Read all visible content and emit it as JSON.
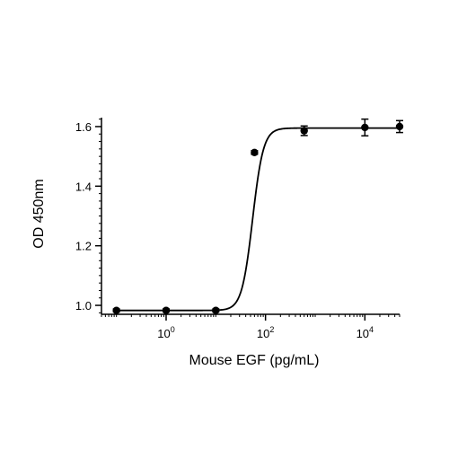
{
  "chart_data": {
    "type": "scatter",
    "xlabel": "Mouse EGF (pg/mL)",
    "ylabel": "OD 450nm",
    "x_scale": "log",
    "xlim": [
      0.05,
      50000
    ],
    "ylim": [
      0.97,
      1.63
    ],
    "x_ticks": [
      {
        "value": 1,
        "base": "10",
        "exp": "0"
      },
      {
        "value": 100,
        "base": "10",
        "exp": "2"
      },
      {
        "value": 10000,
        "base": "10",
        "exp": "4"
      }
    ],
    "y_ticks": [
      {
        "value": 1.0,
        "label": "1.0"
      },
      {
        "value": 1.2,
        "label": "1.2"
      },
      {
        "value": 1.4,
        "label": "1.4"
      },
      {
        "value": 1.6,
        "label": "1.6"
      }
    ],
    "points": [
      {
        "x": 0.1,
        "y": 0.983,
        "err": 0.005
      },
      {
        "x": 1,
        "y": 0.983,
        "err": 0.005
      },
      {
        "x": 10,
        "y": 0.983,
        "err": 0.005
      },
      {
        "x": 60,
        "y": 1.513,
        "err": 0.006
      },
      {
        "x": 600,
        "y": 1.586,
        "err": 0.016
      },
      {
        "x": 10000,
        "y": 1.597,
        "err": 0.028
      },
      {
        "x": 50000,
        "y": 1.6,
        "err": 0.02
      }
    ],
    "fit": {
      "model": "4PL",
      "bottom": 0.983,
      "top": 1.595,
      "ec50": 55,
      "hill": 4
    },
    "grid": false,
    "legend": "none",
    "color": "#000000"
  }
}
